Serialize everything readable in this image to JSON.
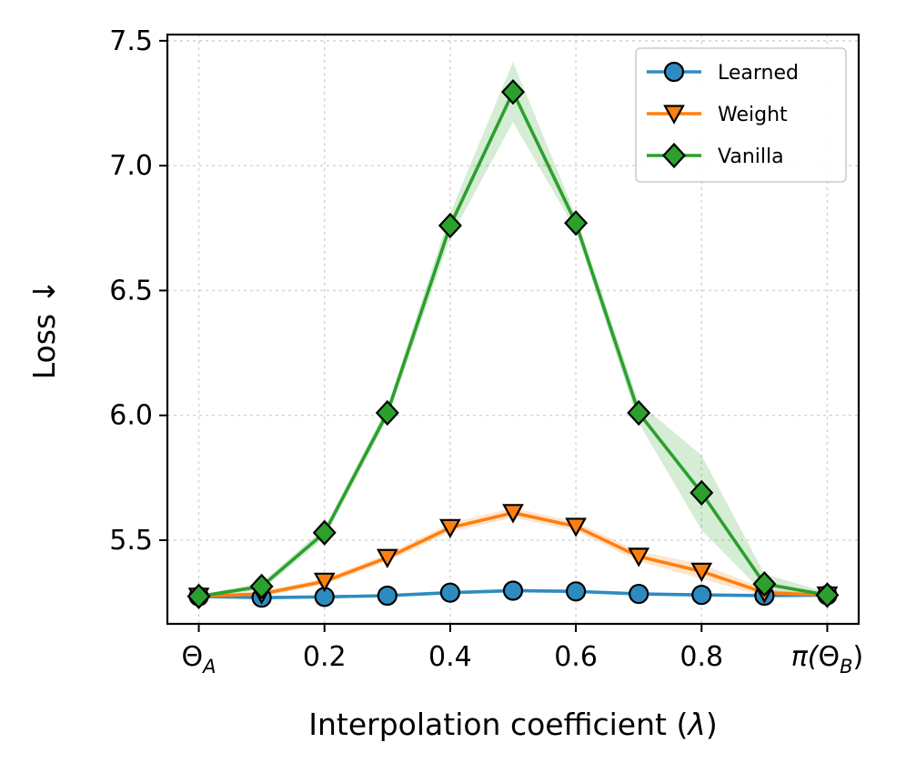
{
  "chart_data": {
    "type": "line",
    "title": "",
    "xlabel": "Interpolation coefficient (λ)",
    "ylabel": "Loss ↓",
    "xlim": [
      -0.05,
      1.05
    ],
    "ylim": [
      5.165,
      7.525
    ],
    "grid": true,
    "legend_position": "top-right",
    "x": [
      0.0,
      0.1,
      0.2,
      0.3,
      0.4,
      0.5,
      0.6,
      0.7,
      0.8,
      0.9,
      1.0
    ],
    "x_ticks": [
      {
        "value": 0.0,
        "label": "Θ",
        "sub": "A",
        "pre": "",
        "post": ""
      },
      {
        "value": 0.2,
        "label": "0.2"
      },
      {
        "value": 0.4,
        "label": "0.4"
      },
      {
        "value": 0.6,
        "label": "0.6"
      },
      {
        "value": 0.8,
        "label": "0.8"
      },
      {
        "value": 1.0,
        "label": "Θ",
        "sub": "B",
        "pre": "π(",
        "post": ")"
      }
    ],
    "y_ticks": [
      5.5,
      6.0,
      6.5,
      7.0,
      7.5
    ],
    "y_tick_labels": [
      "5.5",
      "6.0",
      "6.5",
      "7.0",
      "7.5"
    ],
    "series": [
      {
        "name": "Learned",
        "color": "#2e8bc0",
        "marker": "circle",
        "values": [
          5.275,
          5.27,
          5.273,
          5.278,
          5.29,
          5.298,
          5.295,
          5.285,
          5.281,
          5.278,
          5.28
        ],
        "band": [
          0.005,
          0.006,
          0.006,
          0.006,
          0.007,
          0.007,
          0.007,
          0.007,
          0.006,
          0.006,
          0.005
        ]
      },
      {
        "name": "Weight",
        "color": "#ff7f0e",
        "marker": "triangle-down",
        "values": [
          5.275,
          5.285,
          5.335,
          5.43,
          5.55,
          5.61,
          5.555,
          5.435,
          5.375,
          5.29,
          5.28
        ],
        "band": [
          0.005,
          0.01,
          0.012,
          0.015,
          0.018,
          0.02,
          0.018,
          0.02,
          0.03,
          0.015,
          0.005
        ]
      },
      {
        "name": "Vanilla",
        "color": "#2ca02c",
        "marker": "diamond",
        "values": [
          5.275,
          5.315,
          5.53,
          6.01,
          6.76,
          7.295,
          6.77,
          6.01,
          5.69,
          5.325,
          5.28
        ],
        "band": [
          0.005,
          0.015,
          0.02,
          0.025,
          0.05,
          0.12,
          0.03,
          0.04,
          0.15,
          0.04,
          0.01
        ]
      }
    ]
  }
}
